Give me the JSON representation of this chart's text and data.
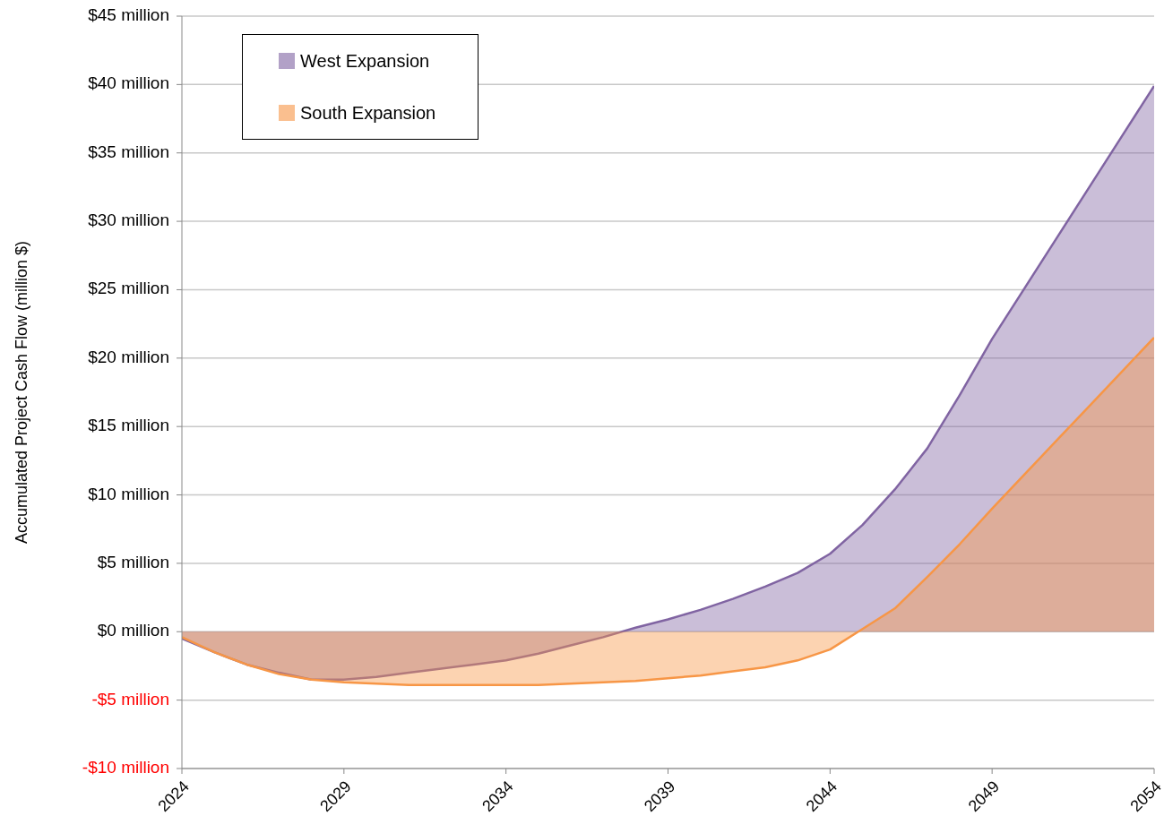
{
  "chart_data": {
    "type": "area",
    "ylabel": "Accumulated Project Cash Flow (million $)",
    "x": [
      2024,
      2025,
      2026,
      2027,
      2028,
      2029,
      2030,
      2031,
      2032,
      2033,
      2034,
      2035,
      2036,
      2037,
      2038,
      2039,
      2040,
      2041,
      2042,
      2043,
      2044,
      2045,
      2046,
      2047,
      2048,
      2049,
      2050,
      2051,
      2052,
      2053,
      2054
    ],
    "series": [
      {
        "name": "West Expansion",
        "color": "#8064a2",
        "values": [
          -0.5,
          -1.5,
          -2.4,
          -3.0,
          -3.5,
          -3.5,
          -3.3,
          -3.0,
          -2.7,
          -2.4,
          -2.1,
          -1.6,
          -1.0,
          -0.4,
          0.3,
          0.9,
          1.6,
          2.4,
          3.3,
          4.3,
          5.7,
          7.8,
          10.4,
          13.4,
          17.3,
          21.4,
          25.1,
          28.8,
          32.5,
          36.2,
          39.9
        ]
      },
      {
        "name": "South Expansion",
        "color": "#f79646",
        "values": [
          -0.4,
          -1.5,
          -2.4,
          -3.1,
          -3.5,
          -3.7,
          -3.8,
          -3.9,
          -3.9,
          -3.9,
          -3.9,
          -3.9,
          -3.8,
          -3.7,
          -3.6,
          -3.4,
          -3.2,
          -2.9,
          -2.6,
          -2.1,
          -1.3,
          0.2,
          1.7,
          4.0,
          6.4,
          9.0,
          11.5,
          14.0,
          16.5,
          19.0,
          21.5
        ]
      }
    ],
    "xlim": [
      2024,
      2054
    ],
    "xticks": [
      2024,
      2029,
      2034,
      2039,
      2044,
      2049,
      2054
    ],
    "ylim": [
      -10,
      45
    ],
    "yticks": [
      {
        "value": -10,
        "label": "-$10 million"
      },
      {
        "value": -5,
        "label": "-$5 million"
      },
      {
        "value": 0,
        "label": "$0 million"
      },
      {
        "value": 5,
        "label": "$5 million"
      },
      {
        "value": 10,
        "label": "$10 million"
      },
      {
        "value": 15,
        "label": "$15 million"
      },
      {
        "value": 20,
        "label": "$20 million"
      },
      {
        "value": 25,
        "label": "$25 million"
      },
      {
        "value": 30,
        "label": "$30 million"
      },
      {
        "value": 35,
        "label": "$35 million"
      },
      {
        "value": 40,
        "label": "$40 million"
      },
      {
        "value": 45,
        "label": "$45 million"
      }
    ],
    "grid": "y",
    "legend": "top left"
  }
}
